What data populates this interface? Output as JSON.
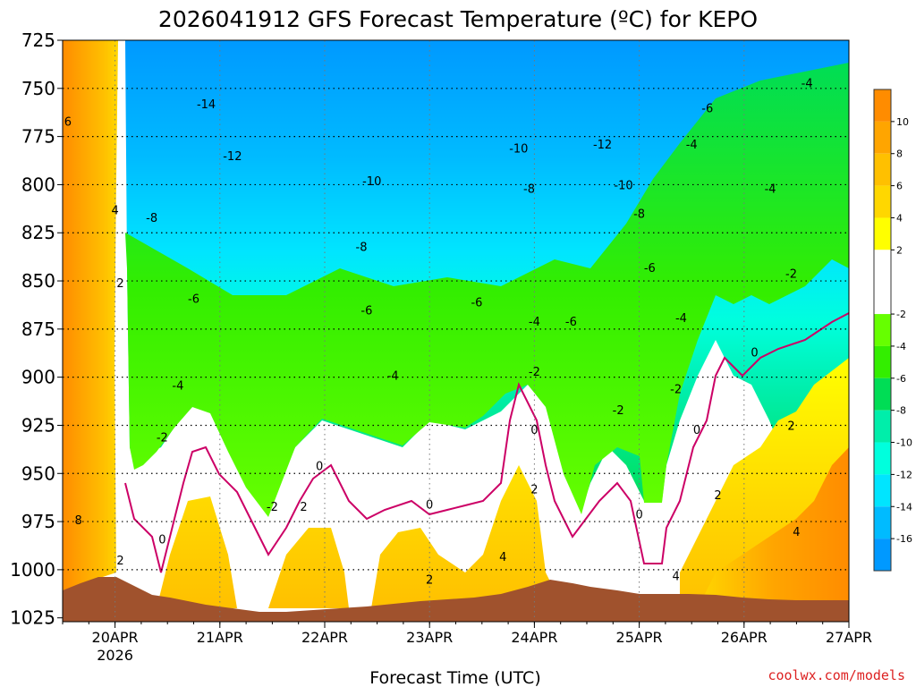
{
  "chart_data": {
    "type": "heatmap",
    "title": "2026041912 GFS Forecast Temperature (ºC) for KEPO",
    "xlabel": "Forecast Time (UTC)",
    "ylabel": "",
    "credit": "coolwx.com/models",
    "x_ticks": [
      {
        "label": "20APR",
        "sub": "2026",
        "day": 0
      },
      {
        "label": "21APR",
        "sub": "",
        "day": 1
      },
      {
        "label": "22APR",
        "sub": "",
        "day": 2
      },
      {
        "label": "23APR",
        "sub": "",
        "day": 3
      },
      {
        "label": "24APR",
        "sub": "",
        "day": 4
      },
      {
        "label": "25APR",
        "sub": "",
        "day": 5
      },
      {
        "label": "26APR",
        "sub": "",
        "day": 6
      },
      {
        "label": "27APR",
        "sub": "",
        "day": 7
      }
    ],
    "xlim_days": [
      -0.5,
      7.0
    ],
    "y_ticks": [
      "725",
      "750",
      "775",
      "800",
      "825",
      "850",
      "875",
      "900",
      "925",
      "950",
      "975",
      "1000",
      "1025"
    ],
    "ylim": [
      725,
      1027
    ],
    "colorbar": {
      "ticks": [
        "10",
        "8",
        "6",
        "4",
        "2",
        "-2",
        "-4",
        "-6",
        "-8",
        "-10",
        "-12",
        "-14",
        "-16"
      ],
      "bands": [
        {
          "from": 10,
          "to": 12,
          "color": "#ff8c00"
        },
        {
          "from": 8,
          "to": 10,
          "color": "#ffa500"
        },
        {
          "from": 6,
          "to": 8,
          "color": "#ffc000"
        },
        {
          "from": 4,
          "to": 6,
          "color": "#ffd700"
        },
        {
          "from": 2,
          "to": 4,
          "color": "#ffff00"
        },
        {
          "from": -2,
          "to": 2,
          "color": "#ffffff"
        },
        {
          "from": -4,
          "to": -2,
          "color": "#66ff00"
        },
        {
          "from": -6,
          "to": -4,
          "color": "#33ee00"
        },
        {
          "from": -8,
          "to": -6,
          "color": "#00dd55"
        },
        {
          "from": -10,
          "to": -8,
          "color": "#00eeaa"
        },
        {
          "from": -12,
          "to": -10,
          "color": "#00ffdd"
        },
        {
          "from": -14,
          "to": -12,
          "color": "#00e5ff"
        },
        {
          "from": -16,
          "to": -14,
          "color": "#00bbff"
        },
        {
          "from": -18,
          "to": -16,
          "color": "#0099ff"
        }
      ]
    },
    "ground_color": "#a0522d",
    "zero_line_color": "#cc0066",
    "contour_labels": [
      {
        "text": "-14",
        "day": 0.87,
        "p": 758
      },
      {
        "text": "-12",
        "day": 1.12,
        "p": 785
      },
      {
        "text": "-10",
        "day": 2.45,
        "p": 798
      },
      {
        "text": "-10",
        "day": 3.85,
        "p": 781
      },
      {
        "text": "-10",
        "day": 4.85,
        "p": 800
      },
      {
        "text": "-12",
        "day": 4.65,
        "p": 779
      },
      {
        "text": "-8",
        "day": 0.35,
        "p": 817
      },
      {
        "text": "-8",
        "day": 2.35,
        "p": 832
      },
      {
        "text": "-8",
        "day": 3.95,
        "p": 802
      },
      {
        "text": "-8",
        "day": 5.0,
        "p": 815
      },
      {
        "text": "-6",
        "day": 0.75,
        "p": 859
      },
      {
        "text": "-6",
        "day": 2.4,
        "p": 865
      },
      {
        "text": "-6",
        "day": 3.45,
        "p": 861
      },
      {
        "text": "-6",
        "day": 5.1,
        "p": 843
      },
      {
        "text": "-6",
        "day": 4.35,
        "p": 871
      },
      {
        "text": "-6",
        "day": 5.65,
        "p": 760
      },
      {
        "text": "-4",
        "day": 0.6,
        "p": 904
      },
      {
        "text": "-4",
        "day": 2.65,
        "p": 899
      },
      {
        "text": "-4",
        "day": 4.0,
        "p": 871
      },
      {
        "text": "-4",
        "day": 5.4,
        "p": 869
      },
      {
        "text": "-4",
        "day": 5.5,
        "p": 779
      },
      {
        "text": "-4",
        "day": 6.25,
        "p": 802
      },
      {
        "text": "-4",
        "day": 6.6,
        "p": 747
      },
      {
        "text": "-2",
        "day": 0.45,
        "p": 931
      },
      {
        "text": "-2",
        "day": 1.5,
        "p": 967
      },
      {
        "text": "-2",
        "day": 4.0,
        "p": 897
      },
      {
        "text": "-2",
        "day": 4.8,
        "p": 917
      },
      {
        "text": "-2",
        "day": 5.35,
        "p": 906
      },
      {
        "text": "-2",
        "day": 6.45,
        "p": 846
      },
      {
        "text": "2",
        "day": 0.05,
        "p": 851
      },
      {
        "text": "2",
        "day": 0.05,
        "p": 995
      },
      {
        "text": "2",
        "day": 1.8,
        "p": 967
      },
      {
        "text": "2",
        "day": 3.0,
        "p": 1005
      },
      {
        "text": "2",
        "day": 4.0,
        "p": 958
      },
      {
        "text": "2",
        "day": 5.75,
        "p": 961
      },
      {
        "text": "2",
        "day": 6.45,
        "p": 925
      },
      {
        "text": "0",
        "day": 0.45,
        "p": 984
      },
      {
        "text": "0",
        "day": 1.95,
        "p": 946
      },
      {
        "text": "0",
        "day": 3.0,
        "p": 966
      },
      {
        "text": "0",
        "day": 4.0,
        "p": 927
      },
      {
        "text": "0",
        "day": 5.0,
        "p": 971
      },
      {
        "text": "0",
        "day": 5.55,
        "p": 927
      },
      {
        "text": "0",
        "day": 6.1,
        "p": 887
      },
      {
        "text": "4",
        "day": 0.0,
        "p": 813
      },
      {
        "text": "4",
        "day": 3.7,
        "p": 993
      },
      {
        "text": "4",
        "day": 5.35,
        "p": 1003
      },
      {
        "text": "4",
        "day": 6.5,
        "p": 980
      },
      {
        "text": "6",
        "day": -0.45,
        "p": 767
      },
      {
        "text": "8",
        "day": -0.35,
        "p": 974
      }
    ]
  }
}
